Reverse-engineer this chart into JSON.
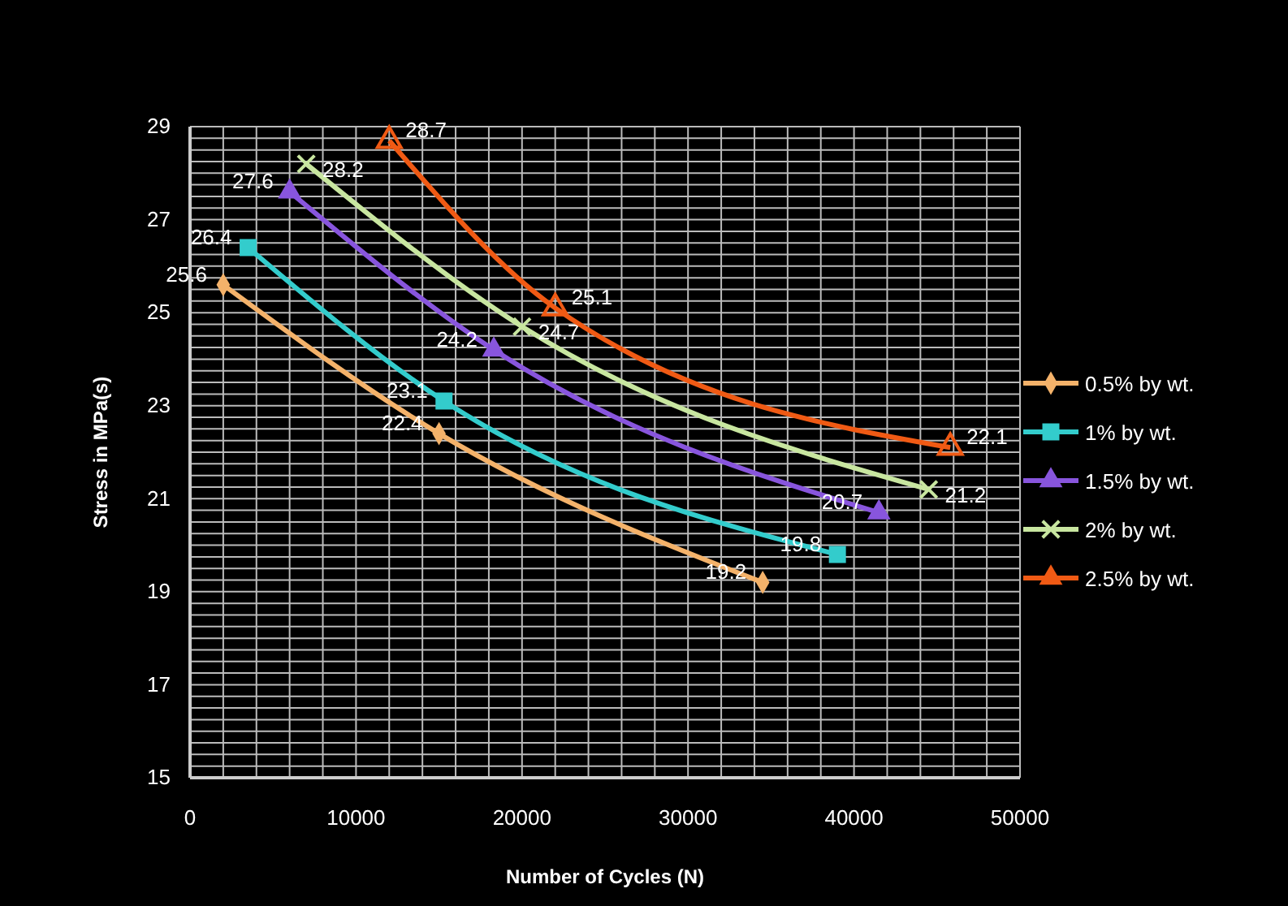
{
  "chart_data": {
    "type": "line",
    "xlabel": "Number of Cycles (N)",
    "ylabel": "Stress in MPa(s)",
    "xlim": [
      0,
      50000
    ],
    "xticks": [
      0,
      10000,
      20000,
      30000,
      40000,
      50000
    ],
    "ylim": [
      15,
      29
    ],
    "yticks": [
      15,
      17,
      19,
      21,
      23,
      25,
      27,
      29
    ],
    "grid": true,
    "legend": "right",
    "data_labels": true,
    "series": [
      {
        "name": "0.5% by wt.",
        "color": "#f4b26a",
        "marker": "diamond",
        "x": [
          2000,
          15000,
          34500
        ],
        "values": [
          25.6,
          22.4,
          19.2
        ]
      },
      {
        "name": "1% by  wt.",
        "color": "#33cccc",
        "marker": "square",
        "x": [
          3500,
          15300,
          39000
        ],
        "values": [
          26.4,
          23.1,
          19.8
        ]
      },
      {
        "name": "1.5% by wt.",
        "color": "#8855dd",
        "marker": "triangle",
        "x": [
          6000,
          18300,
          41500
        ],
        "values": [
          27.6,
          24.2,
          20.7
        ]
      },
      {
        "name": "2% by wt.",
        "color": "#c8e6a0",
        "marker": "cross",
        "x": [
          7000,
          20000,
          44500
        ],
        "values": [
          28.2,
          24.7,
          21.2
        ]
      },
      {
        "name": "2.5% by wt.",
        "color": "#f05a14",
        "marker": "triangle",
        "x": [
          12000,
          22000,
          45800
        ],
        "values": [
          28.7,
          25.1,
          22.1
        ]
      }
    ]
  }
}
